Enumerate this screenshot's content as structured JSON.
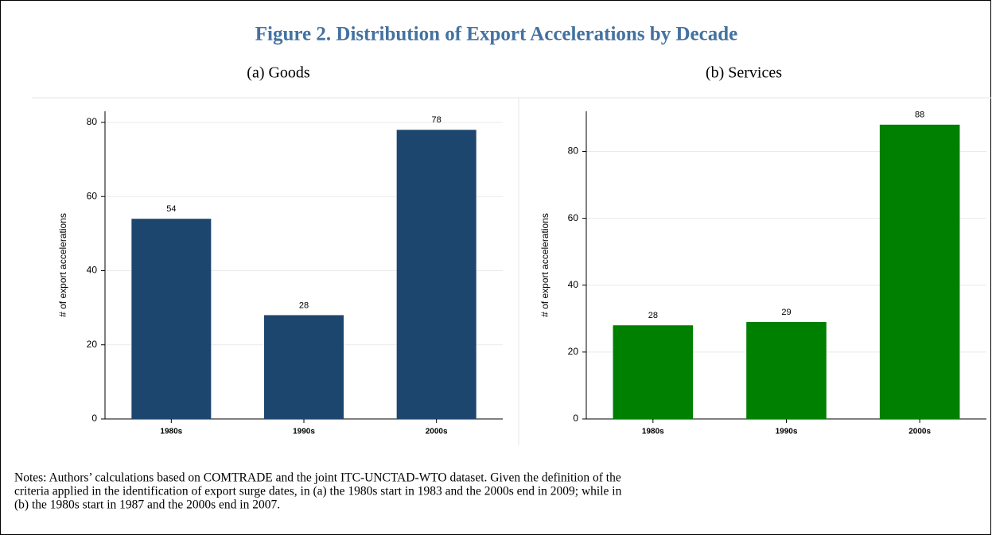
{
  "title": "Figure 2. Distribution of Export Accelerations by Decade",
  "notes": [
    "Notes: Authors’ calculations based on COMTRADE and the joint ITC-UNCTAD-WTO dataset. Given the definition of the",
    "criteria applied in the identification of export surge dates, in (a) the 1980s start in 1983 and the 2000s end in 2009; while in",
    "(b) the 1980s start in 1987 and the 2000s end in 2007."
  ],
  "chart_data": [
    {
      "type": "bar",
      "title": "(a) Goods",
      "y_label": "# of export accelerations",
      "categories": [
        "1980s",
        "1990s",
        "2000s"
      ],
      "values": [
        54,
        28,
        78
      ],
      "color": "#1d466e",
      "ylim": [
        0,
        83
      ],
      "yticks": [
        0,
        20,
        40,
        60,
        80
      ],
      "grid": true
    },
    {
      "type": "bar",
      "title": "(b) Services",
      "y_label": "# of export accelerations",
      "categories": [
        "1980s",
        "1990s",
        "2000s"
      ],
      "values": [
        28,
        29,
        88
      ],
      "color": "#008000",
      "ylim": [
        0,
        92
      ],
      "yticks": [
        0,
        20,
        40,
        60,
        80
      ],
      "grid": true
    }
  ]
}
